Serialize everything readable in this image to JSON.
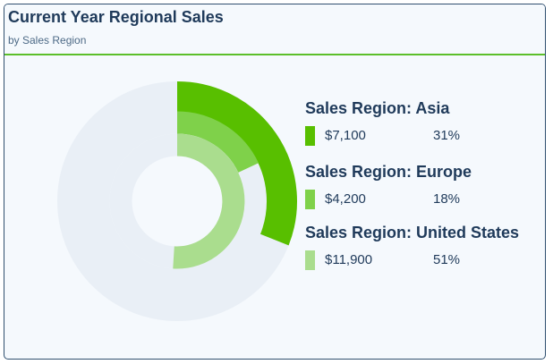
{
  "header": {
    "title": "Current Year Regional Sales",
    "subtitle": "by Sales Region"
  },
  "colors": {
    "track": "#e9eff6",
    "divider": "#5cbf2a",
    "text": "#1f3a5a"
  },
  "chart_data": {
    "type": "radial-bar",
    "title": "Current Year Regional Sales",
    "subtitle": "by Sales Region",
    "legend_placement": "right",
    "max": 100,
    "series": [
      {
        "name": "Sales Region: Asia",
        "value_label": "$7,100",
        "value": 7100,
        "percent": 31,
        "percent_label": "31%",
        "color": "#58bf00"
      },
      {
        "name": "Sales Region: Europe",
        "value_label": "$4,200",
        "value": 4200,
        "percent": 18,
        "percent_label": "18%",
        "color": "#7fd14a"
      },
      {
        "name": "Sales Region: United States",
        "value_label": "$11,900",
        "value": 11900,
        "percent": 51,
        "percent_label": "51%",
        "color": "#aadd8e"
      }
    ]
  }
}
